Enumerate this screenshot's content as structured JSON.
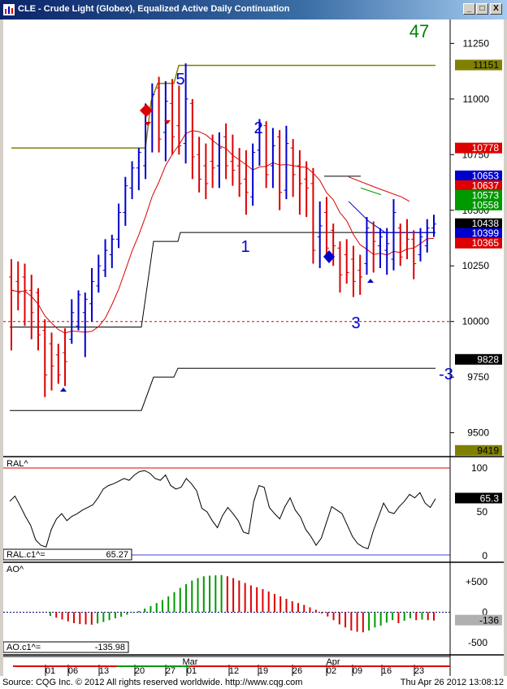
{
  "window": {
    "title": "CLE - Crude Light (Globex), Equalized Active Daily Continuation",
    "icon": "chart-app-icon",
    "buttons": {
      "minimize": "_",
      "maximize": "□",
      "close": "X"
    }
  },
  "footer": {
    "source": "Source: CQG Inc. © 2012 All rights reserved worldwide. http://www.cqg.com",
    "timestamp": "Thu Apr 26 2012 13:08:12"
  },
  "colors": {
    "up_bar": "#0000cc",
    "down_bar": "#dd0000",
    "ma_red": "#dd0000",
    "olive": "#808000",
    "navy": "#000080",
    "green_price": "#009900",
    "corner_counter": "#008000",
    "wave_label": "#0000cc"
  },
  "corner_counter": "47",
  "wave_labels": [
    "5",
    "2",
    "1",
    "3",
    "-3"
  ],
  "chart_data": [
    {
      "panel": "price",
      "type": "ohlc",
      "ylim": [
        9400,
        11350
      ],
      "y_ticks": [
        "11250",
        "11000",
        "10750",
        "10500",
        "10250",
        "10000",
        "9750",
        "9500"
      ],
      "bars": [
        {
          "o": 10200,
          "h": 10280,
          "l": 9870,
          "c": 10140
        },
        {
          "o": 10180,
          "h": 10270,
          "l": 10050,
          "c": 10130
        },
        {
          "o": 10200,
          "h": 10260,
          "l": 9980,
          "c": 10140
        },
        {
          "o": 10140,
          "h": 10210,
          "l": 9920,
          "c": 10040
        },
        {
          "o": 10130,
          "h": 10150,
          "l": 9870,
          "c": 9940
        },
        {
          "o": 9960,
          "h": 10010,
          "l": 9660,
          "c": 9760
        },
        {
          "o": 9900,
          "h": 9950,
          "l": 9690,
          "c": 9800
        },
        {
          "o": 9850,
          "h": 9900,
          "l": 9720,
          "c": 9760
        },
        {
          "o": 9860,
          "h": 9970,
          "l": 9710,
          "c": 9820
        },
        {
          "o": 9920,
          "h": 10100,
          "l": 9900,
          "c": 10040
        },
        {
          "o": 9980,
          "h": 10140,
          "l": 9960,
          "c": 10120
        },
        {
          "o": 10040,
          "h": 10130,
          "l": 9840,
          "c": 10100
        },
        {
          "o": 10080,
          "h": 10240,
          "l": 10000,
          "c": 10180
        },
        {
          "o": 10160,
          "h": 10300,
          "l": 10130,
          "c": 10250
        },
        {
          "o": 10230,
          "h": 10370,
          "l": 10200,
          "c": 10320
        },
        {
          "o": 10300,
          "h": 10390,
          "l": 10240,
          "c": 10370
        },
        {
          "o": 10370,
          "h": 10530,
          "l": 10330,
          "c": 10490
        },
        {
          "o": 10490,
          "h": 10650,
          "l": 10430,
          "c": 10610
        },
        {
          "o": 10600,
          "h": 10720,
          "l": 10550,
          "c": 10690
        },
        {
          "o": 10690,
          "h": 10780,
          "l": 10590,
          "c": 10760
        },
        {
          "o": 10700,
          "h": 10980,
          "l": 10640,
          "c": 10940
        },
        {
          "o": 10950,
          "h": 11070,
          "l": 10760,
          "c": 11020
        },
        {
          "o": 11050,
          "h": 11100,
          "l": 10760,
          "c": 10820
        },
        {
          "o": 10850,
          "h": 11080,
          "l": 10720,
          "c": 10990
        },
        {
          "o": 10980,
          "h": 11090,
          "l": 10750,
          "c": 10830
        },
        {
          "o": 10880,
          "h": 11060,
          "l": 10750,
          "c": 10790
        },
        {
          "o": 10800,
          "h": 11160,
          "l": 10710,
          "c": 11000
        },
        {
          "o": 10980,
          "h": 11000,
          "l": 10640,
          "c": 10740
        },
        {
          "o": 10750,
          "h": 10830,
          "l": 10580,
          "c": 10640
        },
        {
          "o": 10700,
          "h": 10800,
          "l": 10550,
          "c": 10620
        },
        {
          "o": 10720,
          "h": 10840,
          "l": 10600,
          "c": 10690
        },
        {
          "o": 10700,
          "h": 10850,
          "l": 10600,
          "c": 10780
        },
        {
          "o": 10830,
          "h": 10890,
          "l": 10640,
          "c": 10700
        },
        {
          "o": 10720,
          "h": 10840,
          "l": 10610,
          "c": 10680
        },
        {
          "o": 10700,
          "h": 10780,
          "l": 10560,
          "c": 10620
        },
        {
          "o": 10640,
          "h": 10770,
          "l": 10480,
          "c": 10580
        },
        {
          "o": 10560,
          "h": 10800,
          "l": 10520,
          "c": 10760
        },
        {
          "o": 10770,
          "h": 10910,
          "l": 10700,
          "c": 10880
        },
        {
          "o": 10880,
          "h": 10900,
          "l": 10600,
          "c": 10660
        },
        {
          "o": 10700,
          "h": 10870,
          "l": 10600,
          "c": 10790
        },
        {
          "o": 10830,
          "h": 10860,
          "l": 10500,
          "c": 10580
        },
        {
          "o": 10590,
          "h": 10880,
          "l": 10550,
          "c": 10800
        },
        {
          "o": 10780,
          "h": 10820,
          "l": 10560,
          "c": 10660
        },
        {
          "o": 10700,
          "h": 10770,
          "l": 10480,
          "c": 10620
        },
        {
          "o": 10640,
          "h": 10720,
          "l": 10470,
          "c": 10600
        },
        {
          "o": 10620,
          "h": 10690,
          "l": 10260,
          "c": 10320
        },
        {
          "o": 10380,
          "h": 10540,
          "l": 10240,
          "c": 10430
        },
        {
          "o": 10490,
          "h": 10560,
          "l": 10290,
          "c": 10330
        },
        {
          "o": 10410,
          "h": 10440,
          "l": 10250,
          "c": 10340
        },
        {
          "o": 10330,
          "h": 10360,
          "l": 10130,
          "c": 10210
        },
        {
          "o": 10300,
          "h": 10370,
          "l": 10170,
          "c": 10220
        },
        {
          "o": 10280,
          "h": 10340,
          "l": 10110,
          "c": 10180
        },
        {
          "o": 10230,
          "h": 10300,
          "l": 10120,
          "c": 10200
        },
        {
          "o": 10260,
          "h": 10470,
          "l": 10210,
          "c": 10420
        },
        {
          "o": 10400,
          "h": 10450,
          "l": 10220,
          "c": 10360
        },
        {
          "o": 10340,
          "h": 10420,
          "l": 10240,
          "c": 10380
        },
        {
          "o": 10320,
          "h": 10420,
          "l": 10210,
          "c": 10350
        },
        {
          "o": 10280,
          "h": 10550,
          "l": 10230,
          "c": 10490
        },
        {
          "o": 10420,
          "h": 10440,
          "l": 10250,
          "c": 10290
        },
        {
          "o": 10400,
          "h": 10460,
          "l": 10280,
          "c": 10370
        },
        {
          "o": 10370,
          "h": 10410,
          "l": 10190,
          "c": 10260
        },
        {
          "o": 10300,
          "h": 10420,
          "l": 10270,
          "c": 10380
        },
        {
          "o": 10340,
          "h": 10460,
          "l": 10310,
          "c": 10420
        },
        {
          "o": 10420,
          "h": 10480,
          "l": 10380,
          "c": 10438
        }
      ],
      "price_boxes": [
        {
          "label": "11151",
          "bg": "#808000",
          "fg": "#000000"
        },
        {
          "label": "10778",
          "bg": "#dd0000",
          "fg": "#ffffff"
        },
        {
          "label": "10653",
          "bg": "#0000cc",
          "fg": "#ffffff"
        },
        {
          "label": "10637",
          "bg": "#dd0000",
          "fg": "#ffffff"
        },
        {
          "label": "10573",
          "bg": "#009900",
          "fg": "#ffffff"
        },
        {
          "label": "10558",
          "bg": "#009900",
          "fg": "#ffffff"
        },
        {
          "label": "10438",
          "bg": "#000000",
          "fg": "#ffffff"
        },
        {
          "label": "10399",
          "bg": "#0000cc",
          "fg": "#ffffff"
        },
        {
          "label": "10365",
          "bg": "#dd0000",
          "fg": "#ffffff"
        },
        {
          "label": "9828",
          "bg": "#000000",
          "fg": "#ffffff"
        },
        {
          "label": "9419",
          "bg": "#808000",
          "fg": "#000000"
        }
      ],
      "reference_level": 10000
    },
    {
      "panel": "RAL",
      "type": "line",
      "label": "RAL^",
      "readout_label": "RAL.c1^=",
      "readout_value": "65.27",
      "last_box": "65.3",
      "ylim": [
        0,
        100
      ],
      "y_ticks": [
        "100",
        "50",
        "0"
      ],
      "values": [
        62,
        68,
        57,
        45,
        35,
        18,
        12,
        10,
        30,
        42,
        48,
        40,
        45,
        48,
        52,
        55,
        58,
        66,
        76,
        80,
        82,
        85,
        88,
        86,
        92,
        96,
        97,
        94,
        88,
        86,
        92,
        80,
        76,
        78,
        88,
        82,
        74,
        54,
        50,
        40,
        32,
        46,
        55,
        48,
        40,
        27,
        25,
        62,
        80,
        78,
        55,
        48,
        42,
        56,
        66,
        52,
        44,
        30,
        22,
        12,
        20,
        38,
        56,
        52,
        48,
        35,
        22,
        14,
        10,
        8,
        28,
        44,
        60,
        50,
        48,
        56,
        62,
        70,
        66,
        72,
        60,
        55,
        65
      ]
    },
    {
      "panel": "AO",
      "type": "bar",
      "label": "AO^",
      "readout_label": "AO.c1^=",
      "readout_value": "-135.98",
      "last_box": "-136",
      "ylim": [
        -620,
        660
      ],
      "y_ticks": [
        "+500",
        "0",
        "-500"
      ],
      "values": [
        -60,
        -90,
        -120,
        -150,
        -180,
        -195,
        -200,
        -205,
        -185,
        -160,
        -130,
        -100,
        -75,
        -40,
        -10,
        20,
        60,
        100,
        150,
        200,
        260,
        330,
        400,
        460,
        520,
        560,
        590,
        600,
        605,
        610,
        590,
        560,
        520,
        480,
        440,
        410,
        380,
        340,
        300,
        260,
        220,
        180,
        150,
        120,
        80,
        40,
        -20,
        -70,
        -130,
        -200,
        -250,
        -300,
        -320,
        -330,
        -300,
        -250,
        -220,
        -170,
        -130,
        -180,
        -140,
        -100,
        -130,
        -120,
        -130,
        -136
      ]
    }
  ],
  "x_axis": {
    "day_labels": [
      "01",
      "06",
      "13",
      "20",
      "27",
      "01",
      "12",
      "19",
      "26",
      "02",
      "09",
      "16",
      "23"
    ],
    "month_labels": [
      "Mar",
      "Apr"
    ]
  }
}
